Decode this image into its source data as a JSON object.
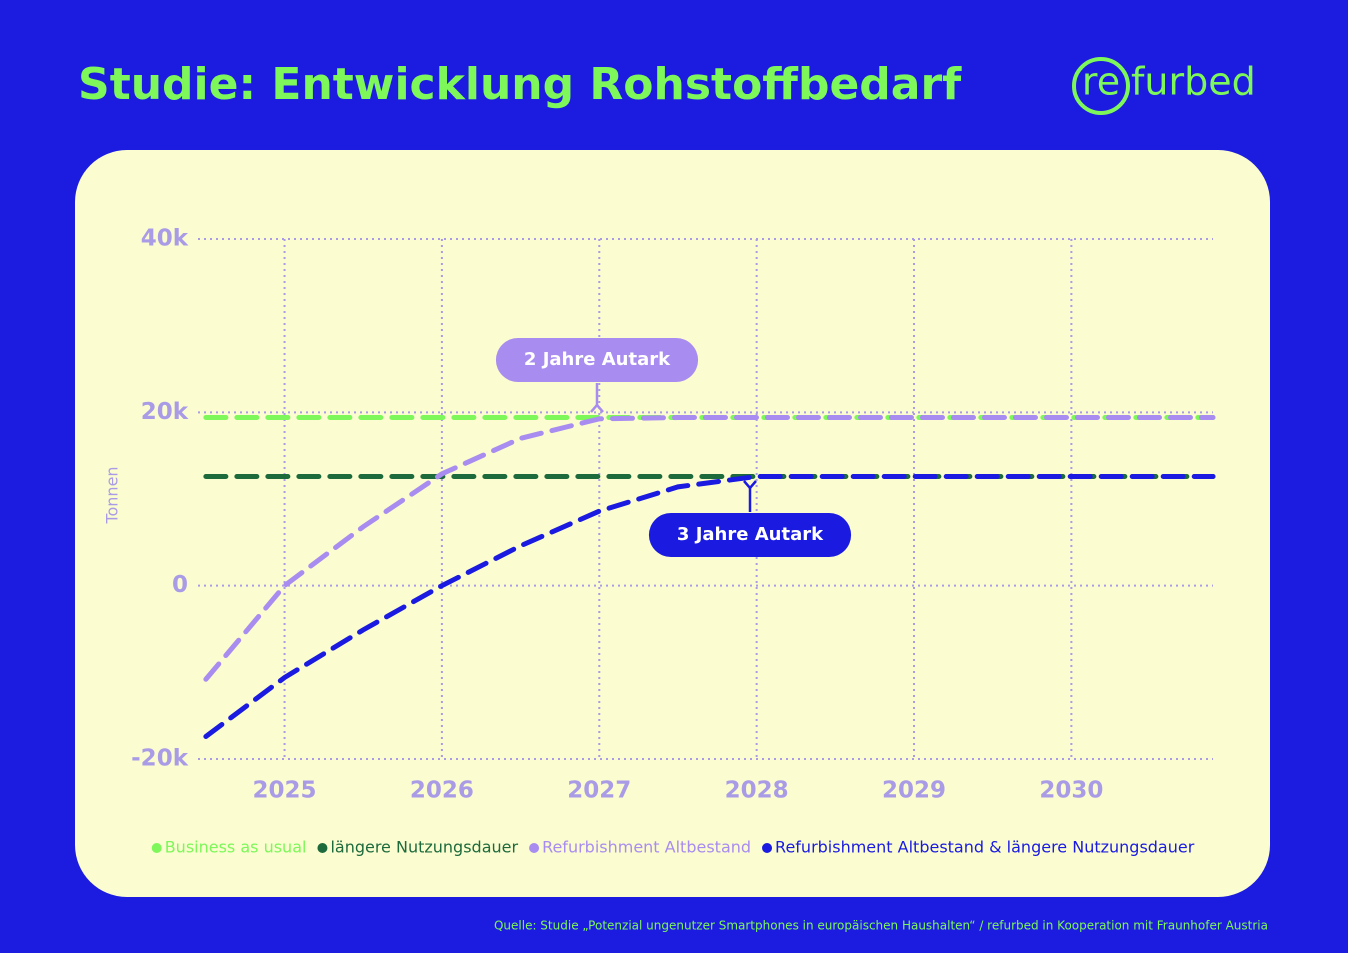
{
  "title": "Studie: Entwicklung Rohstoffbedarf",
  "logo": [
    "re",
    "furbed"
  ],
  "source": "Quelle: Studie „Potenzial ungenutzer Smartphones in europäischen Haushalten“ / refurbed in Kooperation mit Fraunhofer Austria",
  "chart_data": {
    "type": "line",
    "y_label": "Tonnen",
    "x": [
      2024.5,
      2025,
      2025.5,
      2026,
      2026.5,
      2027,
      2027.5,
      2028,
      2028.5,
      2029,
      2029.5,
      2030,
      2030.9
    ],
    "series": [
      {
        "name": "Business as usual",
        "color": "#7df75a",
        "values": [
          19400,
          19400,
          19400,
          19400,
          19400,
          19400,
          19400,
          19400,
          19400,
          19400,
          19400,
          19400,
          19400
        ]
      },
      {
        "name": "längere Nutzungsdauer",
        "color": "#1d6a3c",
        "values": [
          12600,
          12600,
          12600,
          12600,
          12600,
          12600,
          12600,
          12600,
          12600,
          12600,
          12600,
          12600,
          12600
        ]
      },
      {
        "name": "Refurbishment Altbestand",
        "color": "#a98cf0",
        "values": [
          -10800,
          0,
          6800,
          12900,
          17000,
          19250,
          19400,
          19400,
          19400,
          19400,
          19400,
          19400,
          19400
        ]
      },
      {
        "name": "Refurbishment Altbestand & längere Nutzungsdauer",
        "color": "#1a1ae0",
        "values": [
          -17400,
          -10600,
          -5100,
          0,
          4600,
          8600,
          11400,
          12600,
          12600,
          12600,
          12600,
          12600,
          12600
        ]
      }
    ],
    "xlim": [
      2024.45,
      2030.9
    ],
    "xticks": [
      2025,
      2026,
      2027,
      2028,
      2029,
      2030
    ],
    "ylim": [
      -20000,
      40000
    ],
    "yticks": [
      {
        "value": -20000,
        "label": "-20k"
      },
      0,
      {
        "value": 20000,
        "label": "20k"
      },
      {
        "value": 40000,
        "label": "40k"
      }
    ],
    "grid": true,
    "annotations": [
      {
        "text": "2 Jahre Autark",
        "color": "#a98cf0"
      },
      {
        "text": "3 Jahre Autark",
        "color": "#1a1ae0"
      }
    ]
  }
}
